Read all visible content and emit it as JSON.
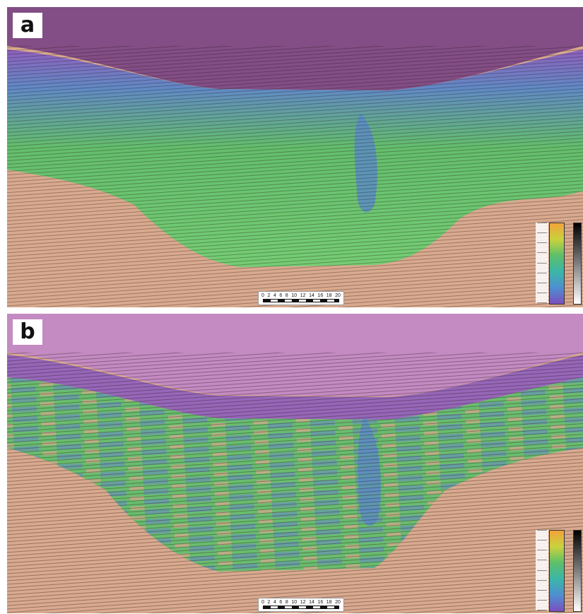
{
  "panels": [
    {
      "label": "a",
      "water_color": "#834d85",
      "scale_ticks": [
        "0",
        "2",
        "4",
        "6",
        "8",
        "10",
        "12",
        "14",
        "16",
        "18",
        "20"
      ]
    },
    {
      "label": "b",
      "water_color": "#c48ac2",
      "scale_ticks": [
        "0",
        "2",
        "4",
        "6",
        "8",
        "10",
        "12",
        "14",
        "16",
        "18",
        "20"
      ]
    }
  ],
  "colors": {
    "sediment_background": "#d9a98e",
    "velocity_green": "#5dbf6a",
    "velocity_blue": "#5a88c8",
    "velocity_purple": "#8a5bc0"
  }
}
